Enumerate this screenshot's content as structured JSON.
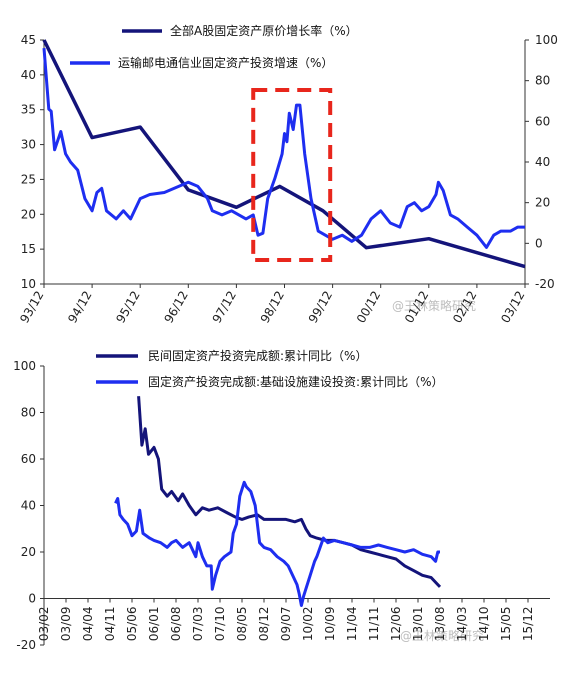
{
  "chart_data": [
    {
      "type": "line",
      "x": [
        "93/12",
        "94/12",
        "95/12",
        "96/12",
        "97/12",
        "98/12",
        "99/12",
        "00/12",
        "01/12",
        "02/12",
        "03/12"
      ],
      "series": [
        {
          "name": "全部A股固定资产原价增长率（%）",
          "axis": "left",
          "color": "#14147a",
          "values": [
            [
              0,
              45
            ],
            [
              1,
              31
            ],
            [
              2,
              32.5
            ],
            [
              3,
              23.5
            ],
            [
              4,
              21
            ],
            [
              4.9,
              24
            ],
            [
              5.8,
              20.5
            ],
            [
              6.7,
              15.2
            ],
            [
              8,
              16.5
            ],
            [
              10,
              12.5
            ]
          ]
        },
        {
          "name": "运输邮电通信业固定资产投资增速（%）",
          "axis": "right",
          "color": "#1e2ef0",
          "values": [
            [
              0,
              96
            ],
            [
              0.1,
              66
            ],
            [
              0.15,
              65
            ],
            [
              0.22,
              46
            ],
            [
              0.35,
              55
            ],
            [
              0.45,
              44
            ],
            [
              0.55,
              40
            ],
            [
              0.7,
              36
            ],
            [
              0.85,
              22
            ],
            [
              1.0,
              16
            ],
            [
              1.1,
              25
            ],
            [
              1.2,
              27
            ],
            [
              1.3,
              16
            ],
            [
              1.5,
              12
            ],
            [
              1.65,
              16
            ],
            [
              1.8,
              12
            ],
            [
              2.0,
              22
            ],
            [
              2.2,
              24
            ],
            [
              2.5,
              25
            ],
            [
              2.8,
              28
            ],
            [
              3.0,
              30
            ],
            [
              3.2,
              28
            ],
            [
              3.4,
              22
            ],
            [
              3.5,
              16
            ],
            [
              3.7,
              14
            ],
            [
              3.9,
              16
            ],
            [
              4.2,
              12
            ],
            [
              4.35,
              14
            ],
            [
              4.45,
              4
            ],
            [
              4.55,
              5
            ],
            [
              4.65,
              22
            ],
            [
              4.8,
              32
            ],
            [
              4.95,
              44
            ],
            [
              5.0,
              54
            ],
            [
              5.05,
              50
            ],
            [
              5.1,
              64
            ],
            [
              5.18,
              56
            ],
            [
              5.25,
              68
            ],
            [
              5.32,
              68
            ],
            [
              5.42,
              44
            ],
            [
              5.55,
              22
            ],
            [
              5.7,
              6
            ],
            [
              5.85,
              4
            ],
            [
              6.0,
              2
            ],
            [
              6.2,
              4
            ],
            [
              6.4,
              1
            ],
            [
              6.6,
              4
            ],
            [
              6.8,
              12
            ],
            [
              7.0,
              16
            ],
            [
              7.2,
              10
            ],
            [
              7.4,
              8
            ],
            [
              7.55,
              18
            ],
            [
              7.7,
              20
            ],
            [
              7.85,
              16
            ],
            [
              8.0,
              18
            ],
            [
              8.15,
              24
            ],
            [
              8.2,
              30
            ],
            [
              8.3,
              26
            ],
            [
              8.45,
              14
            ],
            [
              8.6,
              12
            ],
            [
              8.8,
              8
            ],
            [
              9.0,
              4
            ],
            [
              9.2,
              -2
            ],
            [
              9.35,
              4
            ],
            [
              9.5,
              6
            ],
            [
              9.7,
              6
            ],
            [
              9.85,
              8
            ],
            [
              10.0,
              8
            ]
          ]
        }
      ],
      "ylim_left": [
        10,
        45
      ],
      "ylim_right": [
        -20,
        100
      ],
      "yticks_left": [
        10,
        15,
        20,
        25,
        30,
        35,
        40,
        45
      ],
      "yticks_right": [
        -20,
        0,
        20,
        40,
        60,
        80,
        100
      ],
      "highlight_box": {
        "x": [
          4.35,
          5.95
        ]
      }
    },
    {
      "type": "line",
      "x": [
        "03/02",
        "03/09",
        "04/04",
        "04/11",
        "05/06",
        "06/01",
        "06/08",
        "07/03",
        "07/10",
        "08/05",
        "08/12",
        "09/07",
        "10/02",
        "10/09",
        "11/04",
        "11/11",
        "12/06",
        "13/01",
        "13/08",
        "14/03",
        "14/10",
        "15/05",
        "15/12"
      ],
      "series": [
        {
          "name": "民间固定资产投资完成额:累计同比（%）",
          "color": "#14147a",
          "values": [
            [
              4.3,
              87
            ],
            [
              4.45,
              66
            ],
            [
              4.6,
              73
            ],
            [
              4.75,
              62
            ],
            [
              5.0,
              65
            ],
            [
              5.2,
              60
            ],
            [
              5.35,
              47
            ],
            [
              5.6,
              44
            ],
            [
              5.8,
              46
            ],
            [
              6.1,
              42
            ],
            [
              6.3,
              45
            ],
            [
              6.6,
              40
            ],
            [
              6.9,
              36
            ],
            [
              7.2,
              39
            ],
            [
              7.5,
              38
            ],
            [
              7.9,
              39
            ],
            [
              8.3,
              37
            ],
            [
              8.7,
              35
            ],
            [
              9.0,
              34
            ],
            [
              9.3,
              35
            ],
            [
              9.7,
              36
            ],
            [
              10.0,
              34
            ],
            [
              10.5,
              34
            ],
            [
              11.0,
              34
            ],
            [
              11.4,
              33
            ],
            [
              11.7,
              34
            ],
            [
              11.9,
              30
            ],
            [
              12.1,
              27
            ],
            [
              12.4,
              26
            ],
            [
              12.8,
              25
            ],
            [
              13.2,
              25
            ],
            [
              13.6,
              24
            ],
            [
              14.0,
              23
            ],
            [
              14.4,
              21
            ],
            [
              14.8,
              20
            ],
            [
              15.2,
              19
            ],
            [
              15.6,
              18
            ],
            [
              16.0,
              17
            ],
            [
              16.4,
              14
            ],
            [
              16.8,
              12
            ],
            [
              17.2,
              10
            ],
            [
              17.6,
              9
            ],
            [
              17.9,
              6
            ],
            [
              18.0,
              5
            ]
          ]
        },
        {
          "name": "固定资产投资完成额:基础设施建设投资:累计同比（%）",
          "color": "#1e2ef0",
          "values": [
            [
              3.25,
              41
            ],
            [
              3.35,
              43
            ],
            [
              3.45,
              36
            ],
            [
              3.6,
              34
            ],
            [
              3.8,
              32
            ],
            [
              4.0,
              27
            ],
            [
              4.2,
              29
            ],
            [
              4.35,
              38
            ],
            [
              4.5,
              28
            ],
            [
              4.8,
              26
            ],
            [
              5.0,
              25
            ],
            [
              5.3,
              24
            ],
            [
              5.6,
              22
            ],
            [
              5.8,
              24
            ],
            [
              6.0,
              25
            ],
            [
              6.3,
              22
            ],
            [
              6.6,
              24
            ],
            [
              6.9,
              18
            ],
            [
              7.0,
              24
            ],
            [
              7.2,
              18
            ],
            [
              7.4,
              14
            ],
            [
              7.6,
              14
            ],
            [
              7.65,
              4
            ],
            [
              7.8,
              10
            ],
            [
              8.0,
              16
            ],
            [
              8.2,
              18
            ],
            [
              8.5,
              20
            ],
            [
              8.6,
              28
            ],
            [
              8.75,
              32
            ],
            [
              8.9,
              44
            ],
            [
              9.1,
              50
            ],
            [
              9.2,
              48
            ],
            [
              9.4,
              46
            ],
            [
              9.6,
              40
            ],
            [
              9.7,
              32
            ],
            [
              9.8,
              24
            ],
            [
              10.0,
              22
            ],
            [
              10.3,
              21
            ],
            [
              10.6,
              18
            ],
            [
              10.9,
              16
            ],
            [
              11.1,
              14
            ],
            [
              11.3,
              10
            ],
            [
              11.5,
              6
            ],
            [
              11.6,
              2
            ],
            [
              11.7,
              -3
            ],
            [
              11.8,
              1
            ],
            [
              11.9,
              4
            ],
            [
              12.1,
              10
            ],
            [
              12.3,
              16
            ],
            [
              12.4,
              18
            ],
            [
              12.7,
              26
            ],
            [
              12.9,
              24
            ],
            [
              13.2,
              25
            ],
            [
              13.6,
              24
            ],
            [
              14.0,
              23
            ],
            [
              14.4,
              22
            ],
            [
              14.8,
              22
            ],
            [
              15.2,
              23
            ],
            [
              15.6,
              22
            ],
            [
              16.0,
              21
            ],
            [
              16.4,
              20
            ],
            [
              16.8,
              21
            ],
            [
              17.2,
              19
            ],
            [
              17.6,
              18
            ],
            [
              17.8,
              16
            ],
            [
              17.9,
              20
            ],
            [
              18.0,
              20
            ]
          ]
        }
      ],
      "ylim": [
        -20,
        100
      ],
      "yticks": [
        -20,
        0,
        20,
        40,
        60,
        80,
        100
      ]
    }
  ],
  "watermark": "@王林策略研究"
}
